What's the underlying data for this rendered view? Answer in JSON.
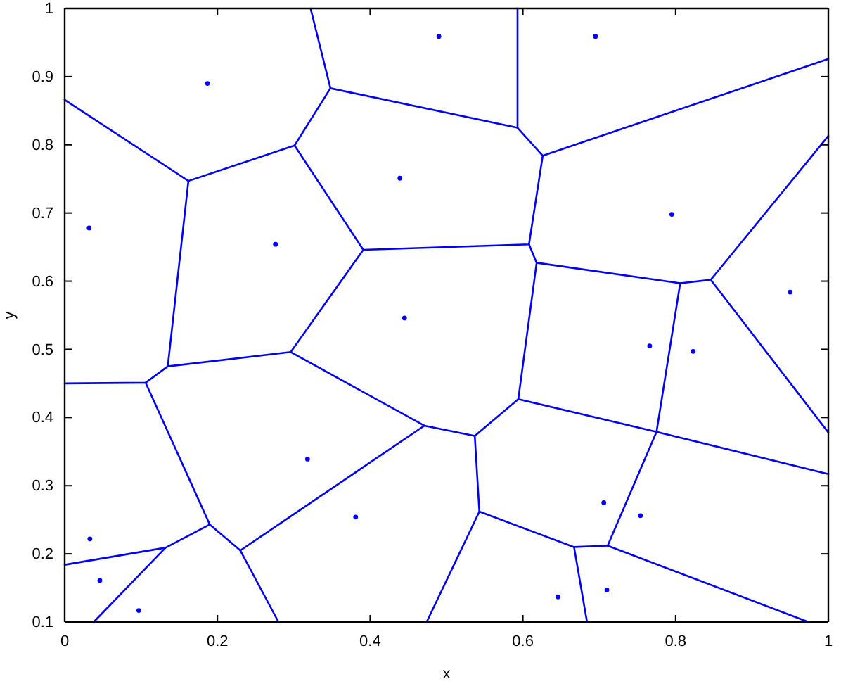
{
  "chart_data": {
    "type": "line",
    "xlabel": "x",
    "ylabel": "y",
    "xlim": [
      0,
      1
    ],
    "ylim": [
      0.1,
      1
    ],
    "xticks": [
      0,
      0.2,
      0.4,
      0.6,
      0.8,
      1
    ],
    "yticks": [
      0.1,
      0.2,
      0.3,
      0.4,
      0.5,
      0.6,
      0.7,
      0.8,
      0.9,
      1
    ],
    "series": [
      {
        "type": "scatter",
        "color": "#0000ff",
        "marker": "circle",
        "x": [
          0.187,
          0.49,
          0.695,
          0.032,
          0.276,
          0.439,
          0.445,
          0.795,
          0.95,
          0.766,
          0.823,
          0.318,
          0.381,
          0.033,
          0.046,
          0.097,
          0.706,
          0.754,
          0.646,
          0.71
        ],
        "values": [
          0.89,
          0.959,
          0.959,
          0.678,
          0.654,
          0.751,
          0.546,
          0.698,
          0.584,
          0.505,
          0.497,
          0.339,
          0.254,
          0.222,
          0.161,
          0.117,
          0.275,
          0.256,
          0.137,
          0.147
        ]
      },
      {
        "color": "#0000ff",
        "x": [
          0,
          0.162,
          0.301,
          0.348,
          0.322
        ],
        "values": [
          0.866,
          0.747,
          0.799,
          0.883,
          1
        ]
      },
      {
        "color": "#0000ff",
        "x": [
          0.348,
          0.593,
          0.626,
          1
        ],
        "values": [
          0.883,
          0.825,
          0.784,
          0.926
        ]
      },
      {
        "color": "#0000ff",
        "x": [
          0.593,
          0.593
        ],
        "values": [
          1,
          0.825
        ]
      },
      {
        "color": "#0000ff",
        "x": [
          0.626,
          0.608,
          0.391,
          0.301
        ],
        "values": [
          0.784,
          0.654,
          0.646,
          0.799
        ]
      },
      {
        "color": "#0000ff",
        "x": [
          0.391,
          0.296,
          0.135,
          0.162
        ],
        "values": [
          0.646,
          0.496,
          0.475,
          0.747
        ]
      },
      {
        "color": "#0000ff",
        "x": [
          0.135,
          0.106,
          0
        ],
        "values": [
          0.475,
          0.451,
          0.45
        ]
      },
      {
        "color": "#0000ff",
        "x": [
          0.106,
          0.19,
          0.132,
          0
        ],
        "values": [
          0.451,
          0.243,
          0.209,
          0.184
        ]
      },
      {
        "color": "#0000ff",
        "x": [
          0.132,
          0.038
        ],
        "values": [
          0.209,
          0.1
        ]
      },
      {
        "color": "#0000ff",
        "x": [
          0.19,
          0.23,
          0.28
        ],
        "values": [
          0.243,
          0.205,
          0.1
        ]
      },
      {
        "color": "#0000ff",
        "x": [
          0.23,
          0.471,
          0.296
        ],
        "values": [
          0.205,
          0.388,
          0.496
        ]
      },
      {
        "color": "#0000ff",
        "x": [
          0.471,
          0.537,
          0.594,
          0.618,
          0.608
        ],
        "values": [
          0.388,
          0.373,
          0.427,
          0.627,
          0.654
        ]
      },
      {
        "color": "#0000ff",
        "x": [
          0.618,
          0.806,
          0.846,
          1
        ],
        "values": [
          0.627,
          0.597,
          0.602,
          0.813
        ]
      },
      {
        "color": "#0000ff",
        "x": [
          0.846,
          1
        ],
        "values": [
          0.602,
          0.378
        ]
      },
      {
        "color": "#0000ff",
        "x": [
          0.806,
          0.775,
          1
        ],
        "values": [
          0.597,
          0.379,
          0.317
        ]
      },
      {
        "color": "#0000ff",
        "x": [
          0.594,
          0.775,
          0.711,
          0.667,
          0.543,
          0.537
        ],
        "values": [
          0.427,
          0.379,
          0.212,
          0.21,
          0.262,
          0.373
        ]
      },
      {
        "color": "#0000ff",
        "x": [
          0.543,
          0.474
        ],
        "values": [
          0.262,
          0.1
        ]
      },
      {
        "color": "#0000ff",
        "x": [
          0.667,
          0.684
        ],
        "values": [
          0.21,
          0.1
        ]
      },
      {
        "color": "#0000ff",
        "x": [
          0.711,
          0.974
        ],
        "values": [
          0.212,
          0.1
        ]
      }
    ]
  }
}
